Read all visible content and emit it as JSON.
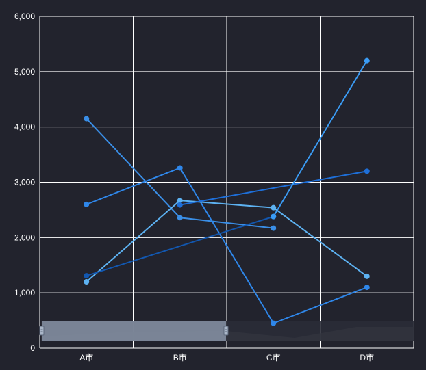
{
  "chart_data": {
    "type": "line",
    "categories": [
      "A市",
      "B市",
      "C市",
      "D市"
    ],
    "ylim": [
      0,
      6000
    ],
    "y_ticks": [
      0,
      1000,
      2000,
      3000,
      4000,
      5000,
      6000
    ],
    "y_tick_labels": [
      "0",
      "1,000",
      "2,000",
      "3,000",
      "4,000",
      "5,000",
      "6,000"
    ],
    "grid": true,
    "series": [
      {
        "color": "#3a8ee6",
        "values": [
          4150,
          2360,
          2170,
          null
        ]
      },
      {
        "color": "#2f87ea",
        "values": [
          2600,
          3260,
          450,
          1100
        ]
      },
      {
        "color": "#5db2f2",
        "values": [
          1200,
          2670,
          2540,
          1300
        ]
      },
      {
        "color": "#1257b0",
        "values": [
          1310,
          null,
          2380,
          null
        ]
      },
      {
        "color": "#1e6fd9",
        "values": [
          null,
          2590,
          null,
          3200
        ]
      },
      {
        "color": "#3b9cf5",
        "values": [
          null,
          null,
          2380,
          5200
        ]
      }
    ],
    "data_zoom": {
      "range": [
        0,
        0.5
      ],
      "color": "#8793a6"
    }
  }
}
